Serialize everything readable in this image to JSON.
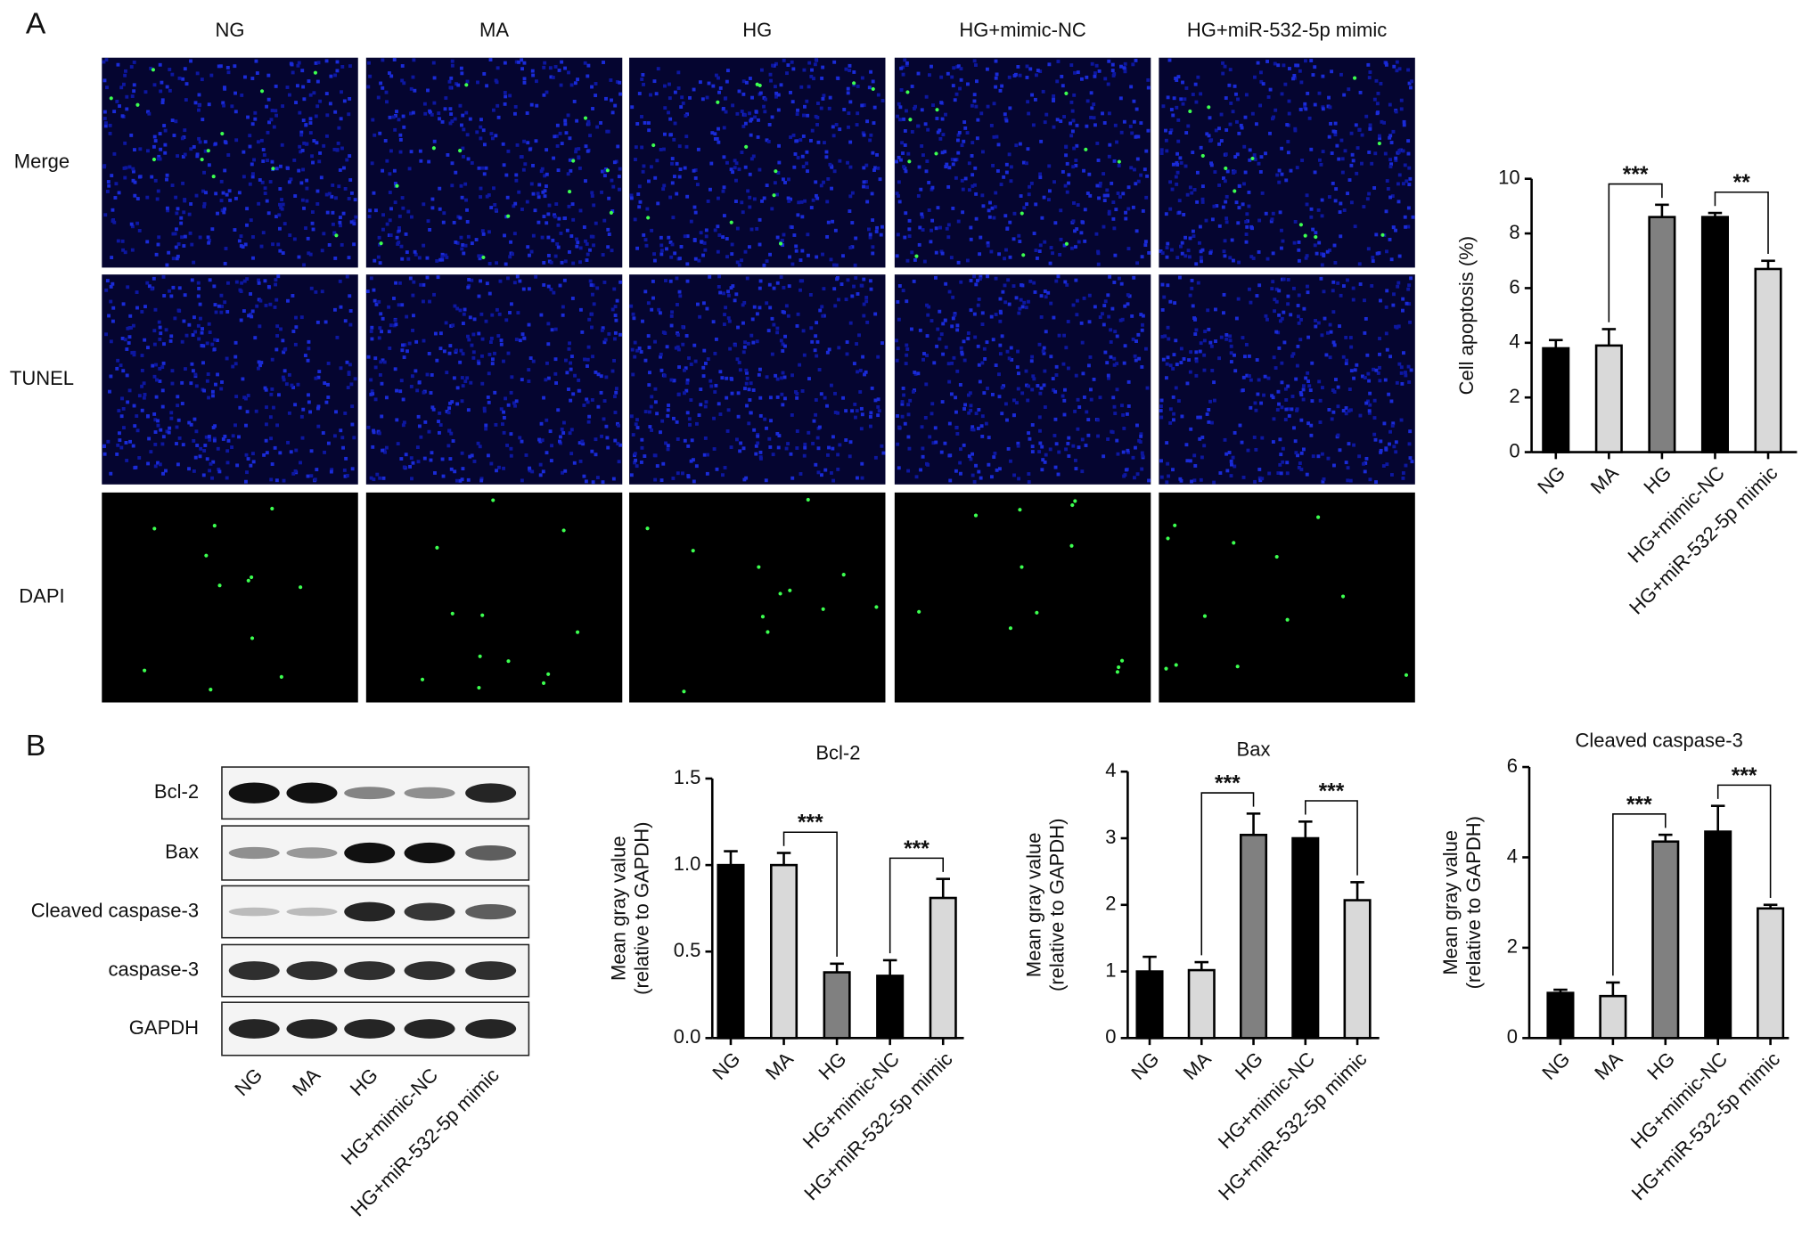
{
  "panels": [
    "A",
    "B"
  ],
  "images": {
    "columns": [
      "NG",
      "MA",
      "HG",
      "HG+mimic-NC",
      "HG+miR-532-5p mimic"
    ],
    "rows": [
      "Merge",
      "TUNEL",
      "DAPI"
    ]
  },
  "blot": {
    "rows": [
      "Bcl-2",
      "Bax",
      "Cleaved caspase-3",
      "caspase-3",
      "GAPDH"
    ],
    "lanes": [
      "NG",
      "MA",
      "HG",
      "HG+mimic-NC",
      "HG+miR-532-5p mimic"
    ]
  },
  "chart_data": [
    {
      "type": "bar",
      "y_label": "Cell apoptosis (%)",
      "categories": [
        "NG",
        "MA",
        "HG",
        "HG+mimic-NC",
        "HG+miR-532-5p mimic"
      ],
      "series": [
        {
          "values": [
            3.8,
            3.9,
            8.6,
            8.6,
            6.7
          ],
          "errors": [
            0.3,
            0.6,
            0.45,
            0.15,
            0.3
          ],
          "colors": [
            "#000000",
            "#d9d9d9",
            "#808080",
            "#000000",
            "#d9d9d9"
          ]
        }
      ],
      "ylim": [
        0,
        10
      ],
      "yticks": [
        0,
        2,
        4,
        6,
        8,
        10
      ],
      "annotations": [
        {
          "text": "***",
          "between": [
            "MA",
            "HG"
          ]
        },
        {
          "text": "**",
          "between": [
            "HG+mimic-NC",
            "HG+miR-532-5p mimic"
          ]
        }
      ]
    },
    {
      "type": "bar",
      "title": "Bcl-2",
      "y_label": [
        "Mean gray value",
        "(relative to GAPDH)"
      ],
      "categories": [
        "NG",
        "MA",
        "HG",
        "HG+mimic-NC",
        "HG+miR-532-5p mimic"
      ],
      "series": [
        {
          "values": [
            1.0,
            1.0,
            0.38,
            0.36,
            0.81
          ],
          "errors": [
            0.08,
            0.07,
            0.05,
            0.09,
            0.11
          ],
          "colors": [
            "#000000",
            "#d9d9d9",
            "#808080",
            "#000000",
            "#d9d9d9"
          ]
        }
      ],
      "ylim": [
        0,
        1.5
      ],
      "yticks": [
        {
          "value": 0,
          "label": "0.0"
        },
        0.5,
        {
          "value": 1,
          "label": "1.0"
        },
        1.5
      ],
      "annotations": [
        {
          "text": "***",
          "between": [
            "MA",
            "HG"
          ]
        },
        {
          "text": "***",
          "between": [
            "HG+mimic-NC",
            "HG+miR-532-5p mimic"
          ]
        }
      ]
    },
    {
      "type": "bar",
      "title": "Bax",
      "y_label": [
        "Mean gray value",
        "(relative to GAPDH)"
      ],
      "categories": [
        "NG",
        "MA",
        "HG",
        "HG+mimic-NC",
        "HG+miR-532-5p mimic"
      ],
      "series": [
        {
          "values": [
            1.0,
            1.02,
            3.05,
            3.0,
            2.07
          ],
          "errors": [
            0.22,
            0.12,
            0.32,
            0.25,
            0.27
          ],
          "colors": [
            "#000000",
            "#d9d9d9",
            "#808080",
            "#000000",
            "#d9d9d9"
          ]
        }
      ],
      "ylim": [
        0,
        4
      ],
      "yticks": [
        0,
        1,
        2,
        3,
        4
      ],
      "annotations": [
        {
          "text": "***",
          "between": [
            "MA",
            "HG"
          ]
        },
        {
          "text": "***",
          "between": [
            "HG+mimic-NC",
            "HG+miR-532-5p mimic"
          ]
        }
      ]
    },
    {
      "type": "bar",
      "title": "Cleaved caspase-3",
      "y_label": [
        "Mean gray value",
        "(relative to GAPDH)"
      ],
      "categories": [
        "NG",
        "MA",
        "HG",
        "HG+mimic-NC",
        "HG+miR-532-5p mimic"
      ],
      "series": [
        {
          "values": [
            1.0,
            0.93,
            4.35,
            4.57,
            2.87
          ],
          "errors": [
            0.07,
            0.3,
            0.15,
            0.57,
            0.08
          ],
          "colors": [
            "#000000",
            "#d9d9d9",
            "#808080",
            "#000000",
            "#d9d9d9"
          ]
        }
      ],
      "ylim": [
        0,
        6
      ],
      "yticks": [
        0,
        2,
        4,
        6
      ],
      "annotations": [
        {
          "text": "***",
          "between": [
            "MA",
            "HG"
          ]
        },
        {
          "text": "***",
          "between": [
            "HG+mimic-NC",
            "HG+miR-532-5p mimic"
          ]
        }
      ]
    }
  ]
}
